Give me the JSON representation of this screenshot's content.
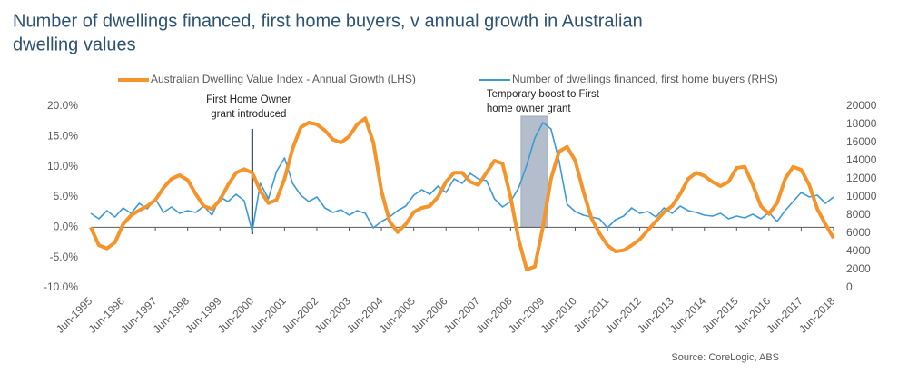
{
  "chart_data": {
    "type": "line",
    "title": [
      "Number of dwellings financed, first home buyers, v annual growth in Australian",
      "dwelling values"
    ],
    "source": "Source: CoreLogic, ABS",
    "annotations": [
      {
        "text": [
          "First Home Owner",
          "grant introduced"
        ]
      },
      {
        "text": [
          "Temporary boost to First",
          "home owner grant"
        ]
      }
    ],
    "categories": [
      "Jun-1995",
      null,
      null,
      null,
      "Jun-1996",
      null,
      null,
      null,
      "Jun-1997",
      null,
      null,
      null,
      "Jun-1998",
      null,
      null,
      null,
      "Jun-1999",
      null,
      null,
      null,
      "Jun-2000",
      null,
      null,
      null,
      "Jun-2001",
      null,
      null,
      null,
      "Jun-2002",
      null,
      null,
      null,
      "Jun-2003",
      null,
      null,
      null,
      "Jun-2004",
      null,
      null,
      null,
      "Jun-2005",
      null,
      null,
      null,
      "Jun-2006",
      null,
      null,
      null,
      "Jun-2007",
      null,
      null,
      null,
      "Jun-2008",
      null,
      null,
      null,
      "Jun-2009",
      null,
      null,
      null,
      "Jun-2010",
      null,
      null,
      null,
      "Jun-2011",
      null,
      null,
      null,
      "Jun-2012",
      null,
      null,
      null,
      "Jun-2013",
      null,
      null,
      null,
      "Jun-2014",
      null,
      null,
      null,
      "Jun-2015",
      null,
      null,
      null,
      "Jun-2016",
      null,
      null,
      null,
      "Jun-2017",
      null,
      null,
      null,
      "Jun-2018"
    ],
    "series": [
      {
        "name": "Australian Dwelling Value Index - Annual Growth (LHS)",
        "color": "#f4942a",
        "axis": "y",
        "values": [
          0,
          -3,
          -3.5,
          -2.5,
          0.5,
          2,
          2.8,
          3.5,
          4.5,
          6.5,
          8,
          8.6,
          7.8,
          5.5,
          3.5,
          3,
          4.5,
          7,
          9,
          9.6,
          9,
          6,
          4,
          4.5,
          8,
          13,
          16.5,
          17.3,
          17,
          16,
          14.5,
          14,
          15,
          17,
          18,
          14,
          6,
          1,
          -0.8,
          0.5,
          2.5,
          3.2,
          3.5,
          5,
          7.5,
          9,
          9,
          7.5,
          7,
          9,
          11,
          10.5,
          5,
          -2,
          -7,
          -6.5,
          0,
          8,
          12.5,
          13.3,
          11,
          6,
          1.5,
          -1,
          -3,
          -4,
          -3.8,
          -3,
          -2,
          -0.5,
          1,
          2.5,
          3.5,
          5.5,
          8,
          9,
          8.5,
          7.5,
          6.8,
          7.5,
          9.8,
          10,
          7,
          3.5,
          2.2,
          4,
          8,
          10,
          9.5,
          7,
          3,
          0.5,
          -1.8
        ]
      },
      {
        "name": "Number of dwellings financed, first home buyers (RHS)",
        "color": "#3d9ad6",
        "axis": "y2",
        "values": [
          8200,
          7600,
          8500,
          7800,
          8800,
          8200,
          9300,
          8700,
          9800,
          8300,
          8900,
          8200,
          8500,
          8300,
          9000,
          8000,
          10000,
          9500,
          10300,
          9600,
          6200,
          11500,
          9800,
          12800,
          14300,
          11500,
          10200,
          9500,
          10000,
          8800,
          8300,
          8600,
          8000,
          8500,
          8200,
          6600,
          7300,
          7800,
          8500,
          9000,
          10200,
          10800,
          10300,
          11200,
          10500,
          12000,
          11500,
          12600,
          12000,
          11800,
          9800,
          8900,
          9500,
          11000,
          13500,
          16500,
          18200,
          17500,
          14000,
          9200,
          8400,
          8000,
          7800,
          7600,
          6600,
          7500,
          7900,
          8800,
          8200,
          8400,
          7800,
          8800,
          8200,
          9000,
          8500,
          8300,
          8000,
          7900,
          8200,
          7600,
          7900,
          7700,
          8100,
          7600,
          8300,
          7300,
          8500,
          9500,
          10500,
          10000,
          10200,
          9300,
          10000
        ]
      }
    ],
    "ylim": [
      -10,
      20
    ],
    "yticks": [
      {
        "value": -10,
        "label": "-10.0%"
      },
      {
        "value": -5,
        "label": "-5.0%"
      },
      {
        "value": 0,
        "label": "0.0%"
      },
      {
        "value": 5,
        "label": "5.0%"
      },
      {
        "value": 10,
        "label": "10.0%"
      },
      {
        "value": 15,
        "label": "15.0%"
      },
      {
        "value": 20,
        "label": "20.0%"
      }
    ],
    "y2lim": [
      0,
      20000
    ],
    "y2ticks": [
      0,
      2000,
      4000,
      6000,
      8000,
      10000,
      12000,
      14000,
      16000,
      18000,
      20000
    ]
  }
}
